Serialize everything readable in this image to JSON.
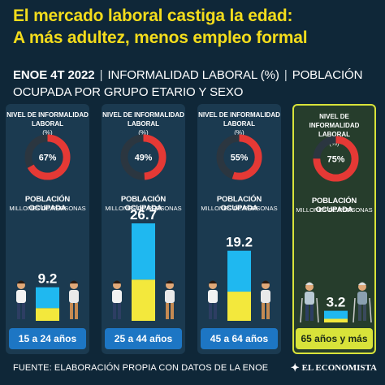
{
  "headline": {
    "line1": "El mercado laboral castiga la edad:",
    "line2": "A más adultez, menos empleo formal"
  },
  "subhead": {
    "bold": "ENOE 4T 2022",
    "sep1": "|",
    "part1": "INFORMALIDAD LABORAL (%)",
    "sep2": "|",
    "part2": "POBLACIÓN OCUPADA POR GRUPO ETARIO Y SEXO"
  },
  "panel_labels": {
    "informality": "NIVEL DE INFORMALIDAD LABORAL",
    "informality_unit": "(%)",
    "population": "POBLACIÓN OCUPADA",
    "population_unit": "MILLONES DE PERSONAS"
  },
  "colors": {
    "background": "#0f2738",
    "panel": "#1b3a50",
    "title": "#f3dc1c",
    "informal_arc": "#e53935",
    "formal_arc": "#2b3640",
    "women_bar": "#f3e83c",
    "men_bar": "#1fb8f0",
    "age_button": "#1d76c4",
    "highlight": "#d8e33a"
  },
  "chart_data": {
    "type": "bar",
    "categories": [
      "15 a 24 años",
      "25 a 44 años",
      "45 a 64 años",
      "65 años y más"
    ],
    "informality_pct": [
      67,
      49,
      55,
      75
    ],
    "series": [
      {
        "values": [
          3.5,
          11.3,
          8.0,
          1.0
        ]
      },
      {
        "values": [
          5.7,
          15.4,
          11.2,
          2.2
        ]
      }
    ],
    "totals": [
      9.2,
      26.7,
      19.2,
      3.2
    ],
    "value_labels": {
      "women": [
        "3.5",
        "11.3",
        "8.0",
        "1.0"
      ],
      "men": [
        "5.7",
        "15.4",
        "11.2",
        "2.2"
      ],
      "totals": [
        "9.2",
        "26.7",
        "19.2",
        "3.2"
      ],
      "informality": [
        "67%",
        "49%",
        "55%",
        "75%"
      ]
    },
    "ylim": [
      0,
      26.7
    ],
    "highlighted_category": "65 años y más"
  },
  "footer": {
    "source": "FUENTE: ELABORACIÓN PROPIA CON DATOS DE LA ENOE",
    "logo": "EL ECONOMISTA",
    "logo_mark": "✦"
  }
}
